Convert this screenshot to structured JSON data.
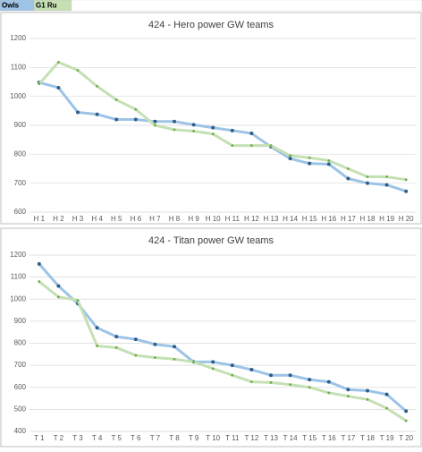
{
  "header": {
    "cells": [
      {
        "text": "Owls",
        "color": "#9dc3e6"
      },
      {
        "text": "G1 Ru",
        "color": "#c6e0b4"
      }
    ]
  },
  "chart_data": [
    {
      "type": "line",
      "title": "424 - Hero power GW teams",
      "categories": [
        "H 1",
        "H 2",
        "H 3",
        "H 4",
        "H 5",
        "H 6",
        "H 7",
        "H 8",
        "H 9",
        "H 10",
        "H 11",
        "H 12",
        "H 13",
        "H 14",
        "H 15",
        "H 16",
        "H 17",
        "H 18",
        "H 19",
        "H 20"
      ],
      "series": [
        {
          "color": "#9dc3e6",
          "marker": "#2e5f8a",
          "values": [
            1048,
            1030,
            945,
            938,
            920,
            920,
            913,
            913,
            902,
            892,
            882,
            872,
            826,
            785,
            768,
            766,
            716,
            700,
            694,
            672
          ]
        },
        {
          "color": "#c5e0b4",
          "marker": "#70ad47",
          "values": [
            1043,
            1118,
            1090,
            1035,
            988,
            955,
            900,
            885,
            880,
            870,
            830,
            830,
            830,
            795,
            788,
            778,
            750,
            722,
            722,
            712
          ]
        }
      ],
      "ylim": [
        600,
        1200
      ],
      "yticks": [
        600,
        700,
        800,
        900,
        1000,
        1100,
        1200
      ],
      "grid": true
    },
    {
      "type": "line",
      "title": "424 - Titan power GW teams",
      "categories": [
        "T 1",
        "T 2",
        "T 3",
        "T 4",
        "T 5",
        "T 6",
        "T 7",
        "T 8",
        "T 9",
        "T 10",
        "T 11",
        "T 12",
        "T 13",
        "T 14",
        "T 15",
        "T 16",
        "T 17",
        "T 18",
        "T 19",
        "T 20"
      ],
      "series": [
        {
          "color": "#9dc3e6",
          "marker": "#2e5f8a",
          "values": [
            1160,
            1060,
            980,
            870,
            830,
            818,
            795,
            785,
            715,
            715,
            700,
            680,
            655,
            655,
            635,
            625,
            590,
            585,
            568,
            492
          ]
        },
        {
          "color": "#c5e0b4",
          "marker": "#70ad47",
          "values": [
            1080,
            1010,
            995,
            788,
            780,
            745,
            735,
            728,
            715,
            685,
            655,
            625,
            622,
            612,
            600,
            575,
            560,
            545,
            505,
            448
          ]
        }
      ],
      "ylim": [
        400,
        1200
      ],
      "yticks": [
        400,
        500,
        600,
        700,
        800,
        900,
        1000,
        1100,
        1200
      ],
      "grid": true
    }
  ]
}
